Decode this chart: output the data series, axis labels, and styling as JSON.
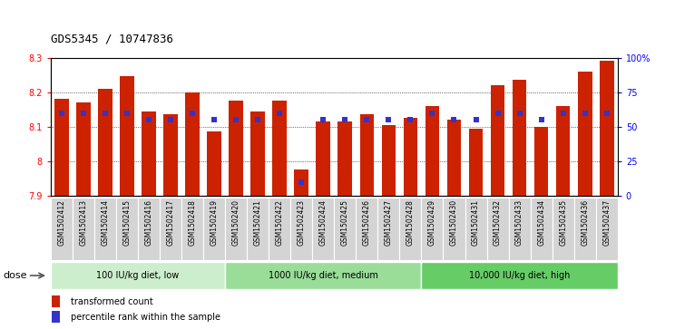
{
  "title": "GDS5345 / 10747836",
  "samples": [
    "GSM1502412",
    "GSM1502413",
    "GSM1502414",
    "GSM1502415",
    "GSM1502416",
    "GSM1502417",
    "GSM1502418",
    "GSM1502419",
    "GSM1502420",
    "GSM1502421",
    "GSM1502422",
    "GSM1502423",
    "GSM1502424",
    "GSM1502425",
    "GSM1502426",
    "GSM1502427",
    "GSM1502428",
    "GSM1502429",
    "GSM1502430",
    "GSM1502431",
    "GSM1502432",
    "GSM1502433",
    "GSM1502434",
    "GSM1502435",
    "GSM1502436",
    "GSM1502437"
  ],
  "bar_values": [
    8.18,
    8.17,
    8.21,
    8.245,
    8.145,
    8.135,
    8.2,
    8.085,
    8.175,
    8.145,
    8.175,
    7.975,
    8.115,
    8.115,
    8.135,
    8.105,
    8.125,
    8.16,
    8.12,
    8.095,
    8.22,
    8.235,
    8.1,
    8.16,
    8.26,
    8.29
  ],
  "percentile_values": [
    60,
    60,
    60,
    60,
    55,
    55,
    60,
    55,
    55,
    55,
    60,
    10,
    55,
    55,
    55,
    55,
    55,
    60,
    55,
    55,
    60,
    60,
    55,
    60,
    60,
    60
  ],
  "ymin": 7.9,
  "ymax": 8.3,
  "bar_color": "#cc2200",
  "percentile_color": "#3333cc",
  "groups": [
    {
      "label": "100 IU/kg diet, low",
      "start": 0,
      "end": 8,
      "color": "#cceecc"
    },
    {
      "label": "1000 IU/kg diet, medium",
      "start": 8,
      "end": 17,
      "color": "#99dd99"
    },
    {
      "label": "10,000 IU/kg diet, high",
      "start": 17,
      "end": 26,
      "color": "#66cc66"
    }
  ],
  "dose_label": "dose",
  "legend_bar": "transformed count",
  "legend_pct": "percentile rank within the sample"
}
